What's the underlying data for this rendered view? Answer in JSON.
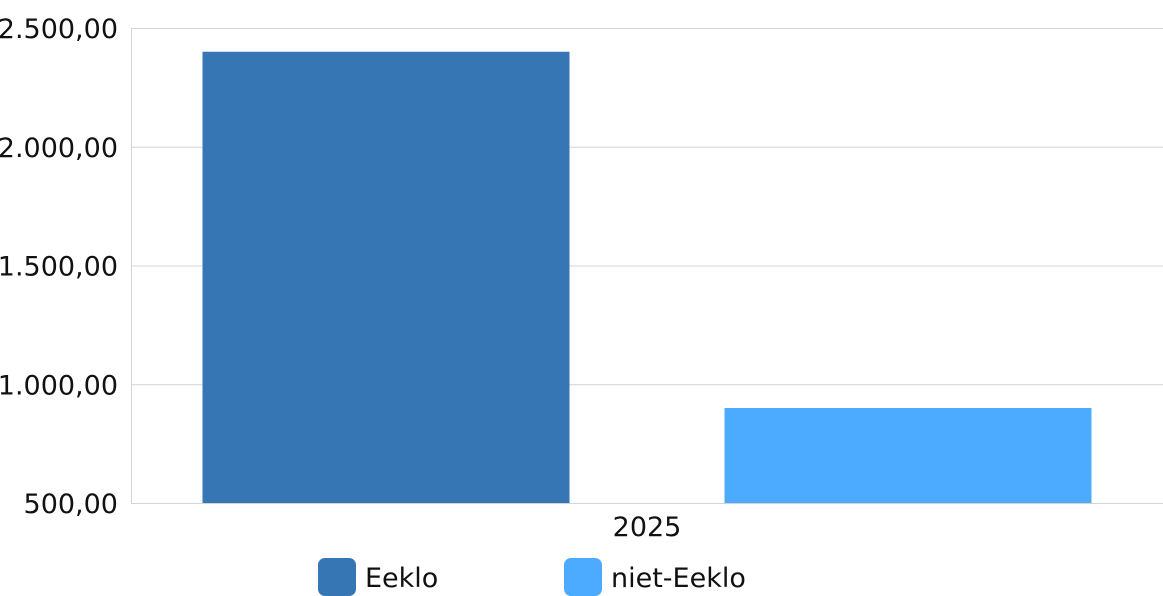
{
  "chart_data": {
    "type": "bar",
    "categories": [
      "2025"
    ],
    "series": [
      {
        "name": "Eeklo",
        "values": [
          2400
        ],
        "color": "#3776b4"
      },
      {
        "name": "niet-Eeklo",
        "values": [
          900
        ],
        "color": "#4dabff"
      }
    ],
    "yticks": [
      "2.500,00",
      "2.000,00",
      "1.500,00",
      "1.000,00",
      "500,00"
    ],
    "ytick_values": [
      2500,
      2000,
      1500,
      1000,
      500
    ],
    "ylim": [
      500,
      2500
    ],
    "grid": true,
    "legend_position": "bottom"
  }
}
